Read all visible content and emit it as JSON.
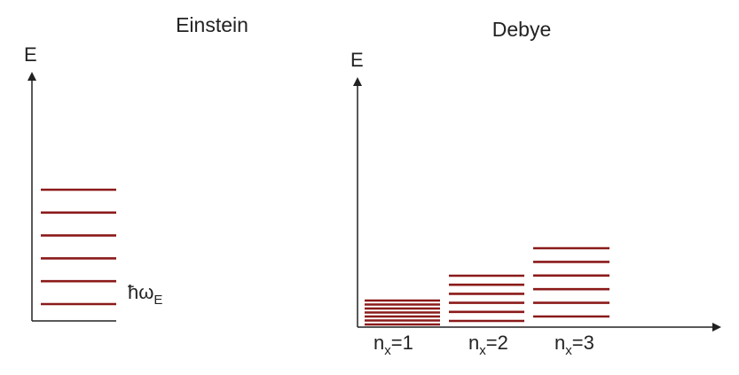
{
  "colors": {
    "axis": "#222222",
    "level": "#8b1a1a",
    "text": "#222222"
  },
  "einstein": {
    "title": "Einstein",
    "axis_label": "E",
    "quantum_label_main": "ħω",
    "quantum_label_sub": "E",
    "level_count": 6
  },
  "debye": {
    "title": "Debye",
    "axis_label": "E",
    "modes": [
      {
        "label_main": "n",
        "label_sub": "x",
        "label_eq": "=1",
        "level_count": 7
      },
      {
        "label_main": "n",
        "label_sub": "x",
        "label_eq": "=2",
        "level_count": 6
      },
      {
        "label_main": "n",
        "label_sub": "x",
        "label_eq": "=3",
        "level_count": 6
      }
    ]
  }
}
